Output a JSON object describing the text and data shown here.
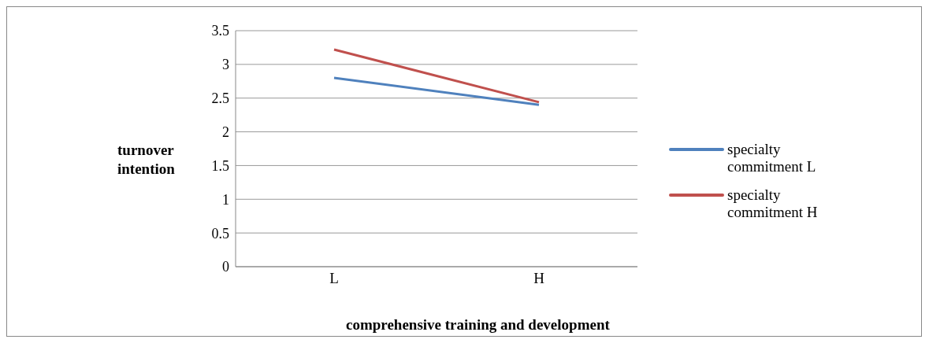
{
  "chart_data": {
    "type": "line",
    "xlabel": "comprehensive training and development",
    "ylabel": "turnover intention",
    "categories": [
      "L",
      "H"
    ],
    "series": [
      {
        "name": "specialty commitment L",
        "color": "#4f81bd",
        "values": [
          2.8,
          2.4
        ]
      },
      {
        "name": "specialty commitment H",
        "color": "#c0504d",
        "values": [
          3.22,
          2.44
        ]
      }
    ],
    "ylim": [
      0,
      3.5
    ],
    "yticks": [
      0,
      0.5,
      1,
      1.5,
      2,
      2.5,
      3,
      3.5
    ],
    "grid": "y",
    "legend": "right",
    "marker": "none",
    "line_style": "solid"
  }
}
